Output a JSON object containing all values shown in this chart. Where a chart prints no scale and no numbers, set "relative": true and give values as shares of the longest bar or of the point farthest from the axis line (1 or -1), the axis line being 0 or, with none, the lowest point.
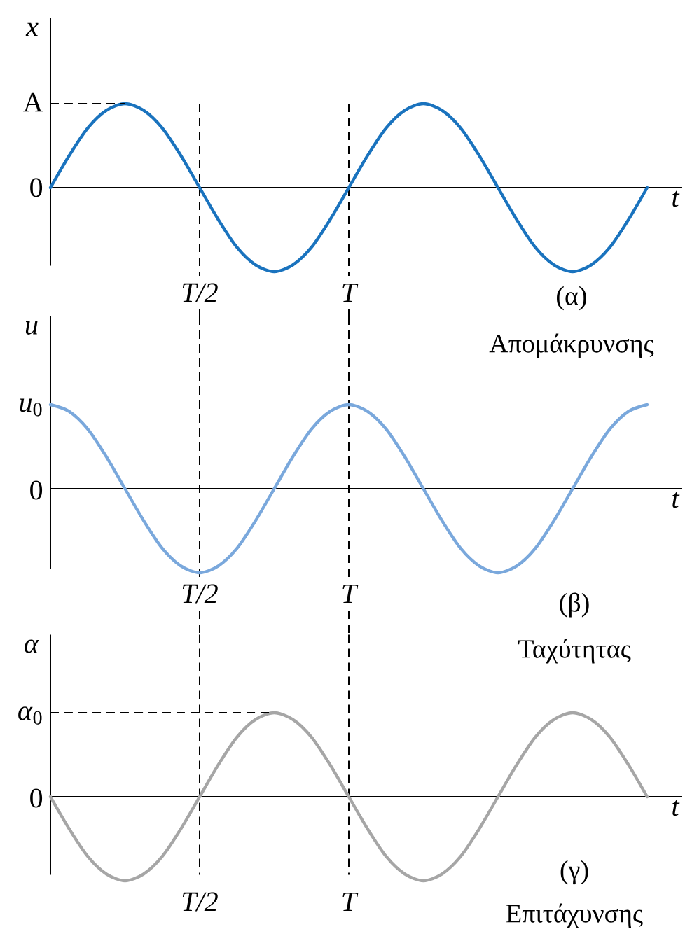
{
  "chart_data": [
    {
      "type": "line",
      "relative": true,
      "title": "(α)",
      "subtitle": "Απομάκρυνσης",
      "xlabel": "t",
      "ylabel": "x",
      "categories": [
        null,
        null,
        null,
        null,
        null,
        null,
        null,
        null,
        "T/2",
        null,
        null,
        null,
        null,
        null,
        null,
        null,
        "T",
        null,
        null,
        null,
        null,
        null,
        null,
        null,
        null,
        null,
        null,
        null,
        null,
        null,
        null,
        null,
        null
      ],
      "series": [
        {
          "color": "#1a73be",
          "values": [
            0,
            0.38,
            0.71,
            0.92,
            1,
            0.92,
            0.71,
            0.38,
            0,
            -0.38,
            -0.71,
            -0.92,
            -1,
            -0.92,
            -0.71,
            -0.38,
            0,
            0.38,
            0.71,
            0.92,
            1,
            0.92,
            0.71,
            0.38,
            0,
            -0.38,
            -0.71,
            -0.92,
            -1,
            -0.92,
            -0.71,
            -0.38,
            0
          ]
        },
        {
          "type": "line",
          "color": "#000000",
          "line_style": "dashed",
          "values": [
            1,
            1,
            1,
            1,
            1,
            null,
            null,
            null,
            null,
            null,
            null,
            null,
            null,
            null,
            null,
            null,
            null,
            null,
            null,
            null,
            null,
            null,
            null,
            null,
            null,
            null,
            null,
            null,
            null,
            null,
            null,
            null,
            null
          ]
        }
      ],
      "ref_lines": [
        {
          "axis": "x",
          "value": "T/2",
          "color": "#000000",
          "line_style": "dashed"
        },
        {
          "axis": "x",
          "value": "T",
          "color": "#000000",
          "line_style": "dashed"
        }
      ],
      "annotations": [
        "A",
        "0"
      ]
    },
    {
      "type": "line",
      "relative": true,
      "title": "(β)",
      "subtitle": "Ταχύτητας",
      "xlabel": "t",
      "ylabel": "u",
      "categories": [
        null,
        null,
        null,
        null,
        null,
        null,
        null,
        null,
        "T/2",
        null,
        null,
        null,
        null,
        null,
        null,
        null,
        "T",
        null,
        null,
        null,
        null,
        null,
        null,
        null,
        null,
        null,
        null,
        null,
        null,
        null,
        null,
        null,
        null
      ],
      "series": [
        {
          "color": "#7aa8dc",
          "values": [
            1,
            0.92,
            0.71,
            0.38,
            0,
            -0.38,
            -0.71,
            -0.92,
            -1,
            -0.92,
            -0.71,
            -0.38,
            0,
            0.38,
            0.71,
            0.92,
            1,
            0.92,
            0.71,
            0.38,
            0,
            -0.38,
            -0.71,
            -0.92,
            -1,
            -0.92,
            -0.71,
            -0.38,
            0,
            0.38,
            0.71,
            0.92,
            1
          ]
        }
      ],
      "ref_lines": [
        {
          "axis": "x",
          "value": "T/2",
          "color": "#000000",
          "line_style": "dashed"
        },
        {
          "axis": "x",
          "value": "T",
          "color": "#000000",
          "line_style": "dashed"
        }
      ],
      "annotations": [
        "*u*$_{0}$",
        "0"
      ]
    },
    {
      "type": "line",
      "relative": true,
      "title": "(γ)",
      "subtitle": "Επιτάχυνσης",
      "xlabel": "t",
      "ylabel": "α",
      "categories": [
        null,
        null,
        null,
        null,
        null,
        null,
        null,
        null,
        "T/2",
        null,
        null,
        null,
        null,
        null,
        null,
        null,
        "T",
        null,
        null,
        null,
        null,
        null,
        null,
        null,
        null,
        null,
        null,
        null,
        null,
        null,
        null,
        null,
        null
      ],
      "series": [
        {
          "color": "#a6a6a6",
          "values": [
            0,
            -0.38,
            -0.71,
            -0.92,
            -1,
            -0.92,
            -0.71,
            -0.38,
            0,
            0.38,
            0.71,
            0.92,
            1,
            0.92,
            0.71,
            0.38,
            0,
            -0.38,
            -0.71,
            -0.92,
            -1,
            -0.92,
            -0.71,
            -0.38,
            0,
            0.38,
            0.71,
            0.92,
            1,
            0.92,
            0.71,
            0.38,
            0
          ]
        },
        {
          "type": "line",
          "color": "#000000",
          "line_style": "dashed",
          "values": [
            1,
            1,
            1,
            1,
            1,
            1,
            1,
            1,
            1,
            1,
            1,
            1,
            1,
            null,
            null,
            null,
            null,
            null,
            null,
            null,
            null,
            null,
            null,
            null,
            null,
            null,
            null,
            null,
            null,
            null,
            null,
            null,
            null
          ]
        }
      ],
      "ref_lines": [
        {
          "axis": "x",
          "value": "T/2",
          "color": "#000000",
          "line_style": "dashed"
        },
        {
          "axis": "x",
          "value": "T",
          "color": "#000000",
          "line_style": "dashed"
        }
      ],
      "annotations": [
        "*α*$_{0}$",
        "0"
      ]
    }
  ]
}
